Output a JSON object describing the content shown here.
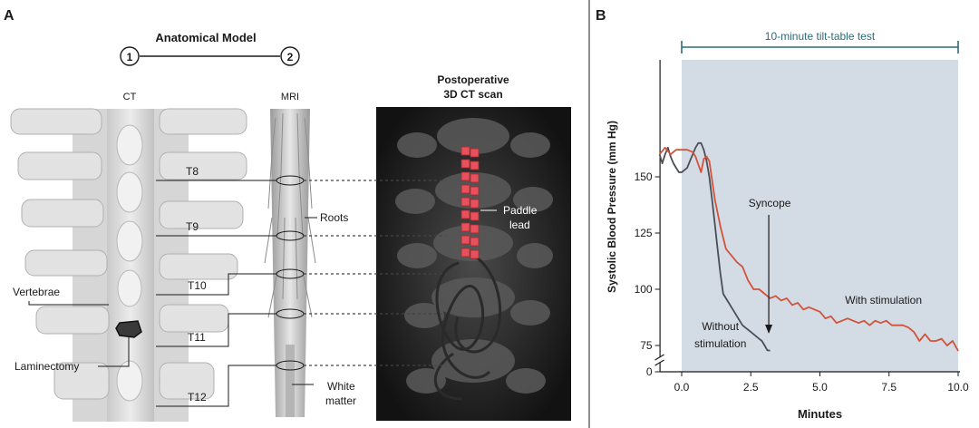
{
  "panel_a": {
    "letter": "A",
    "model_title": "Anatomical Model",
    "step1": "1",
    "step2": "2",
    "ct_label": "CT",
    "mri_label": "MRI",
    "scan_title_line1": "Postoperative",
    "scan_title_line2": "3D CT scan",
    "levels": [
      "T8",
      "T9",
      "T10",
      "T11",
      "T12"
    ],
    "roots_label": "Roots",
    "paddle_line1": "Paddle",
    "paddle_line2": "lead",
    "vertebrae_label": "Vertebrae",
    "laminectomy_label": "Laminectomy",
    "white_line1": "White",
    "white_line2": "matter",
    "colors": {
      "lead": "#e8505b",
      "bone": "#dcdcdc",
      "scan_bg": "#141414"
    }
  },
  "panel_b": {
    "letter": "B",
    "test_label": "10-minute tilt-table test",
    "syncope_label": "Syncope",
    "without_line1": "Without",
    "without_line2": "stimulation",
    "with_label": "With stimulation",
    "colors": {
      "test_bar": "#2e6b78",
      "shade": "#d3dbe5",
      "without": "#4a4f55",
      "with": "#d2533a"
    }
  },
  "chart_data": {
    "type": "line",
    "title": "",
    "xlabel": "Minutes",
    "ylabel": "Systolic Blood Pressure (mm Hg)",
    "xlim": [
      -0.8,
      10.0
    ],
    "ylim": [
      0,
      170
    ],
    "axis_break": "between 0 and 75",
    "x_ticks": [
      0.0,
      2.5,
      5.0,
      7.5,
      10.0
    ],
    "x_tick_labels": [
      "0.0",
      "2.5",
      "5.0",
      "7.5",
      "10.0"
    ],
    "y_ticks": [
      0,
      75,
      100,
      125,
      150
    ],
    "y_tick_labels": [
      "0",
      "75",
      "100",
      "125",
      "150"
    ],
    "shaded_region": [
      0.0,
      10.0
    ],
    "series": [
      {
        "name": "Without stimulation",
        "color": "#4a4f55",
        "x": [
          -0.8,
          -0.7,
          -0.6,
          -0.5,
          -0.4,
          -0.3,
          -0.2,
          -0.1,
          0.0,
          0.1,
          0.2,
          0.3,
          0.4,
          0.5,
          0.6,
          0.7,
          0.8,
          0.9,
          1.0,
          1.1,
          1.2,
          1.3,
          1.4,
          1.5,
          1.6,
          1.7,
          1.8,
          1.9,
          2.0,
          2.1,
          2.2,
          2.3,
          2.4,
          2.5,
          2.6,
          2.7,
          2.8,
          2.9,
          3.0,
          3.1,
          3.2
        ],
        "values": [
          160,
          156,
          160,
          163,
          159,
          156,
          154,
          152,
          152,
          153,
          154,
          157,
          160,
          163,
          165,
          165,
          162,
          157,
          150,
          140,
          129,
          118,
          107,
          98,
          96,
          94,
          92,
          90,
          88,
          86,
          84,
          83,
          82,
          81,
          80,
          79,
          78,
          77,
          75,
          74,
          73
        ]
      },
      {
        "name": "With stimulation",
        "color": "#d2533a",
        "x": [
          -0.8,
          -0.6,
          -0.4,
          -0.2,
          0.0,
          0.2,
          0.4,
          0.5,
          0.7,
          0.8,
          0.9,
          1.0,
          1.2,
          1.4,
          1.6,
          1.8,
          2.0,
          2.2,
          2.4,
          2.6,
          2.8,
          3.0,
          3.2,
          3.4,
          3.6,
          3.8,
          4.0,
          4.2,
          4.4,
          4.6,
          4.8,
          5.0,
          5.2,
          5.4,
          5.6,
          5.8,
          6.0,
          6.2,
          6.4,
          6.6,
          6.8,
          7.0,
          7.2,
          7.4,
          7.6,
          7.8,
          8.0,
          8.2,
          8.4,
          8.6,
          8.8,
          9.0,
          9.2,
          9.4,
          9.6,
          9.8,
          10.0
        ],
        "values": [
          160,
          163,
          160,
          162,
          162,
          162,
          161,
          159,
          152,
          158,
          159,
          157,
          140,
          128,
          118,
          115,
          112,
          110,
          104,
          100,
          100,
          98,
          96,
          97,
          95,
          96,
          93,
          94,
          91,
          92,
          91,
          90,
          87,
          88,
          85,
          86,
          87,
          86,
          85,
          86,
          84,
          86,
          85,
          86,
          84,
          84,
          84,
          83,
          81,
          77,
          80,
          77,
          77,
          78,
          75,
          77,
          72
        ]
      }
    ],
    "annotations": [
      "Syncope",
      "Without stimulation",
      "With stimulation",
      "10-minute tilt-table test"
    ]
  }
}
